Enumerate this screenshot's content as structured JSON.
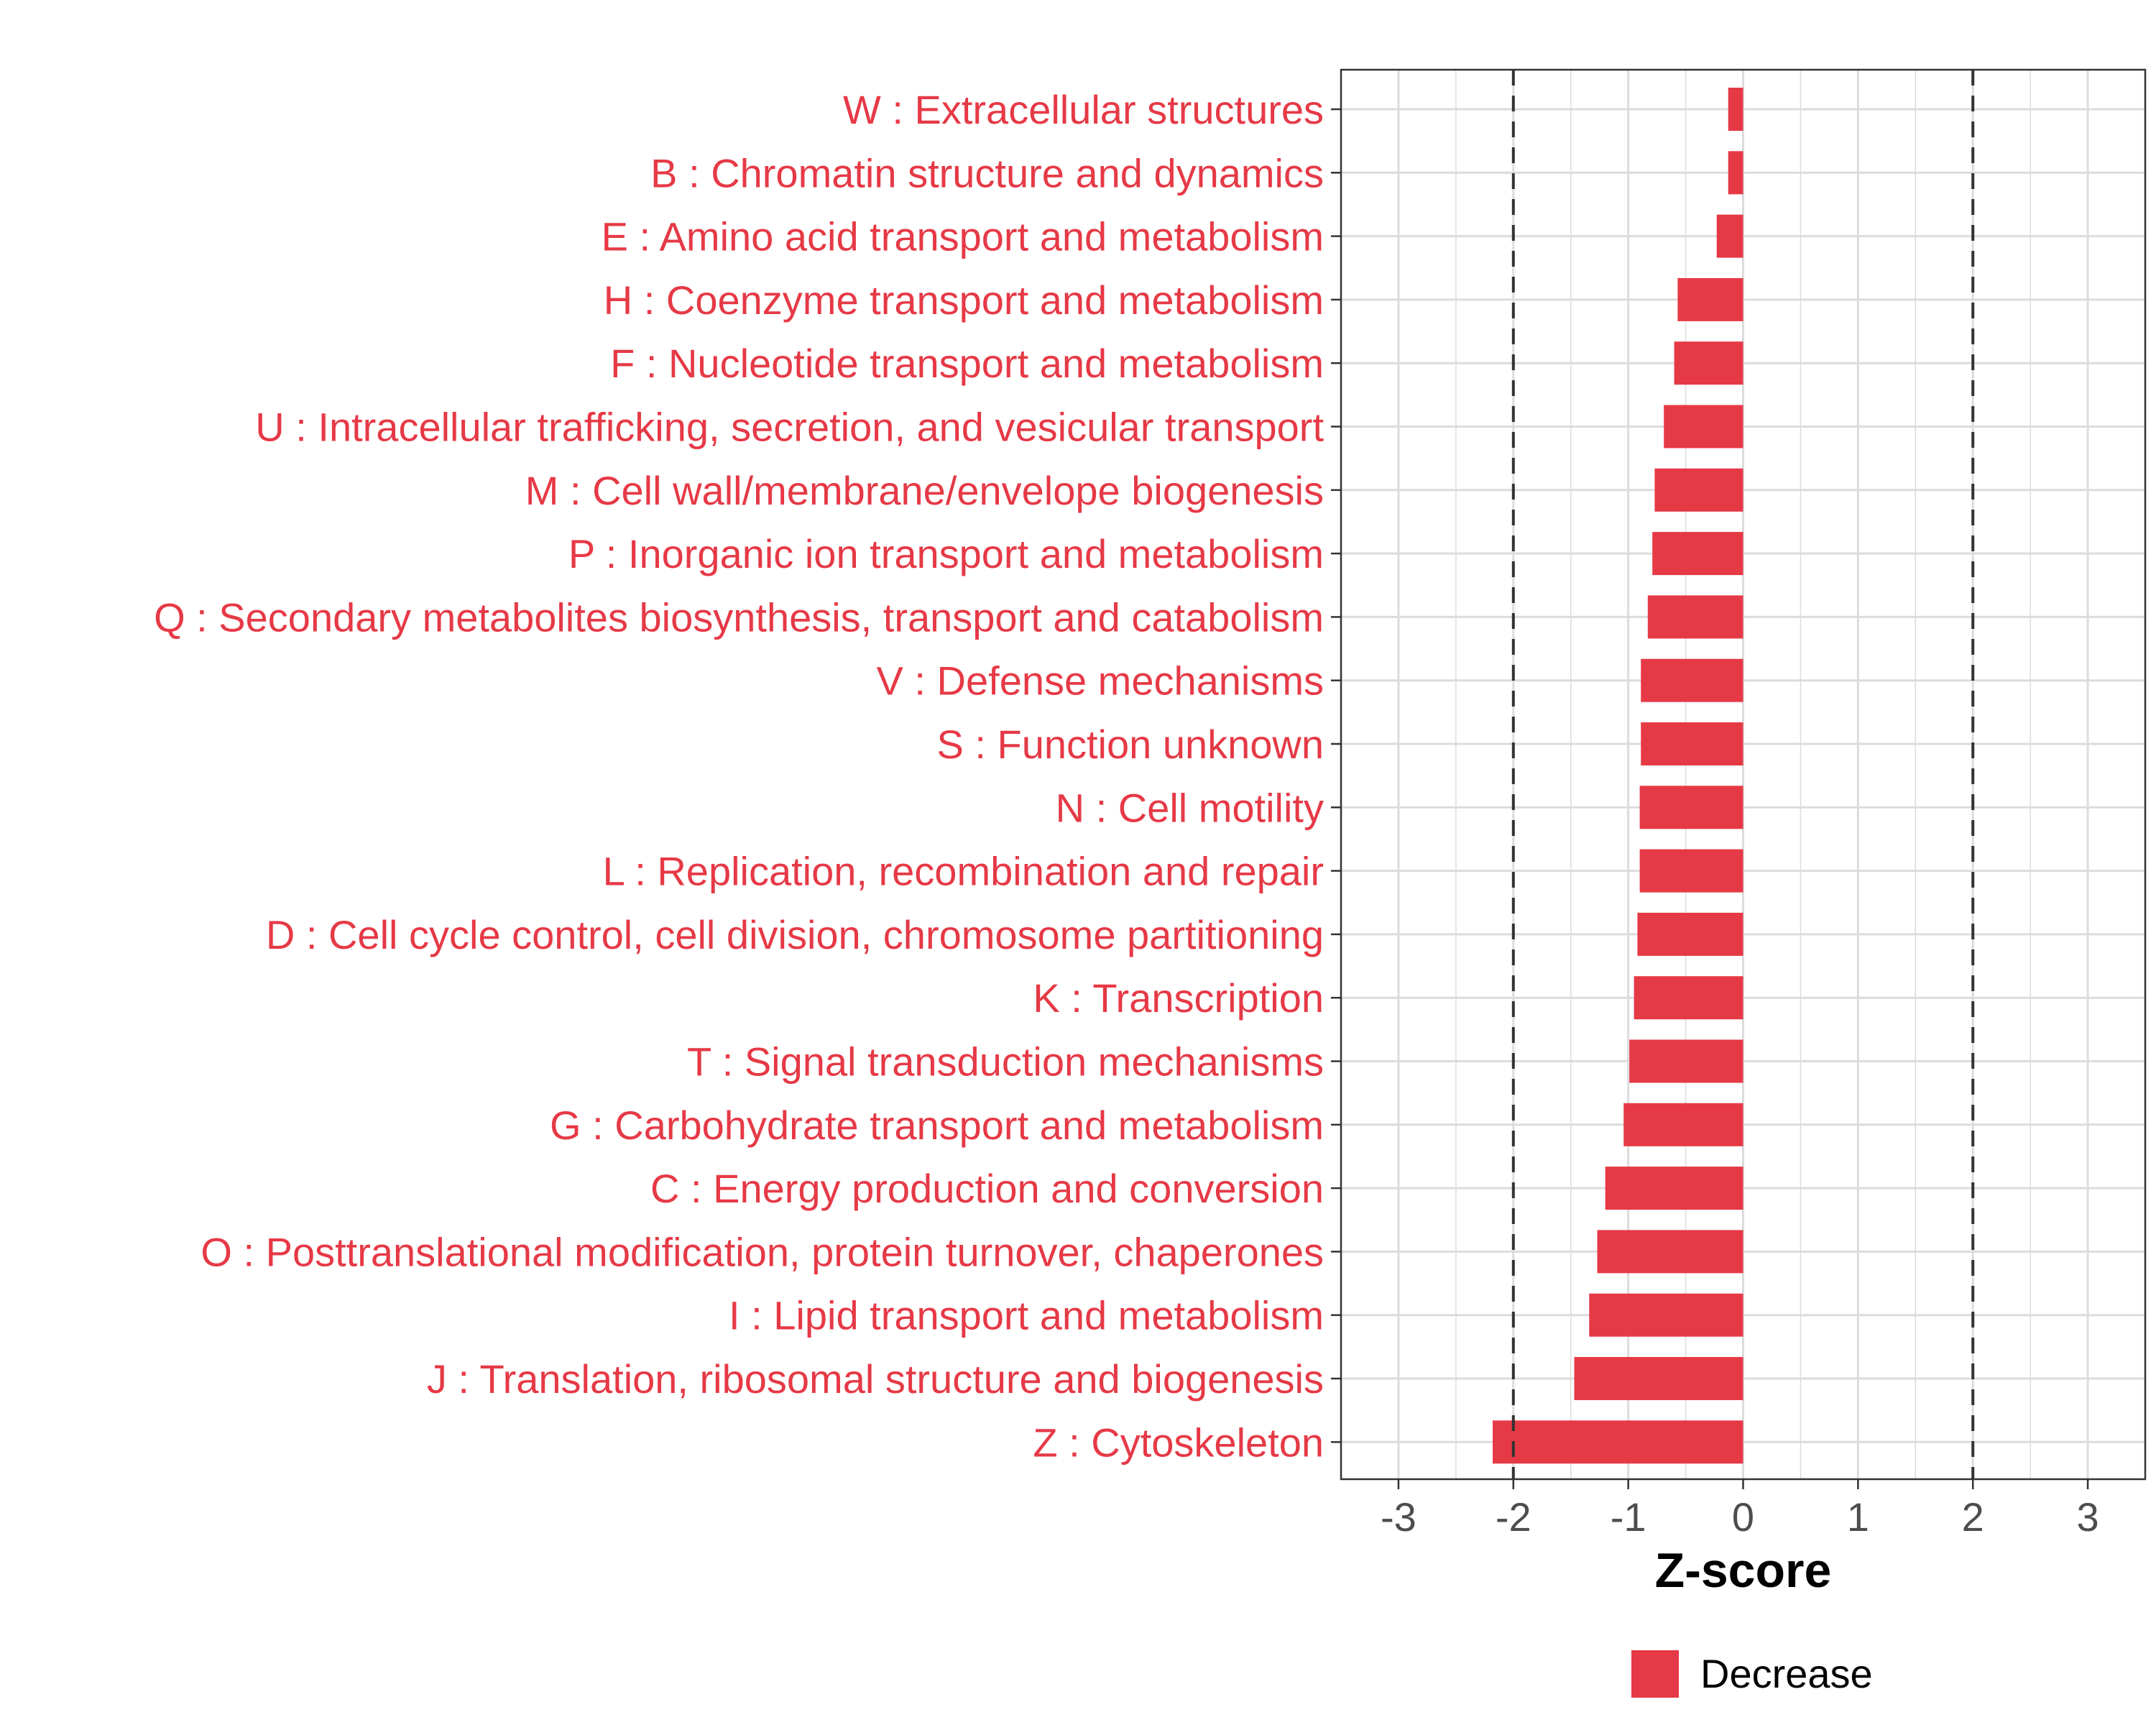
{
  "chart_data": {
    "type": "bar",
    "orientation": "horizontal",
    "xlabel": "Z-score",
    "xlim": [
      -3.5,
      3.5
    ],
    "xticks": [
      -3,
      -2,
      -1,
      0,
      1,
      2,
      3
    ],
    "reference_lines": [
      -2,
      2
    ],
    "grid": true,
    "legend_position": "bottom",
    "colors": {
      "Decrease": "#e63946",
      "label_text": "#e63946"
    },
    "categories": [
      "W : Extracellular structures",
      "B : Chromatin structure and dynamics",
      "E : Amino acid transport and metabolism",
      "H : Coenzyme transport and metabolism",
      "F : Nucleotide transport and metabolism",
      "U : Intracellular trafficking, secretion, and vesicular transport",
      "M : Cell wall/membrane/envelope biogenesis",
      "P : Inorganic ion transport and metabolism",
      "Q : Secondary metabolites biosynthesis, transport and catabolism",
      "V : Defense mechanisms",
      "S : Function unknown",
      "N : Cell motility",
      "L : Replication, recombination and repair",
      "D : Cell cycle control, cell division, chromosome partitioning",
      "K : Transcription",
      "T : Signal transduction mechanisms",
      "G : Carbohydrate transport and metabolism",
      "C : Energy production and conversion",
      "O : Posttranslational modification, protein turnover, chaperones",
      "I : Lipid transport and metabolism",
      "J : Translation, ribosomal structure and biogenesis",
      "Z : Cytoskeleton"
    ],
    "series": [
      {
        "name": "Decrease",
        "values": [
          -0.13,
          -0.13,
          -0.23,
          -0.57,
          -0.6,
          -0.69,
          -0.77,
          -0.79,
          -0.83,
          -0.89,
          -0.89,
          -0.9,
          -0.9,
          -0.92,
          -0.95,
          -0.99,
          -1.04,
          -1.2,
          -1.27,
          -1.34,
          -1.47,
          -2.18
        ]
      }
    ],
    "legend": [
      "Decrease"
    ]
  }
}
